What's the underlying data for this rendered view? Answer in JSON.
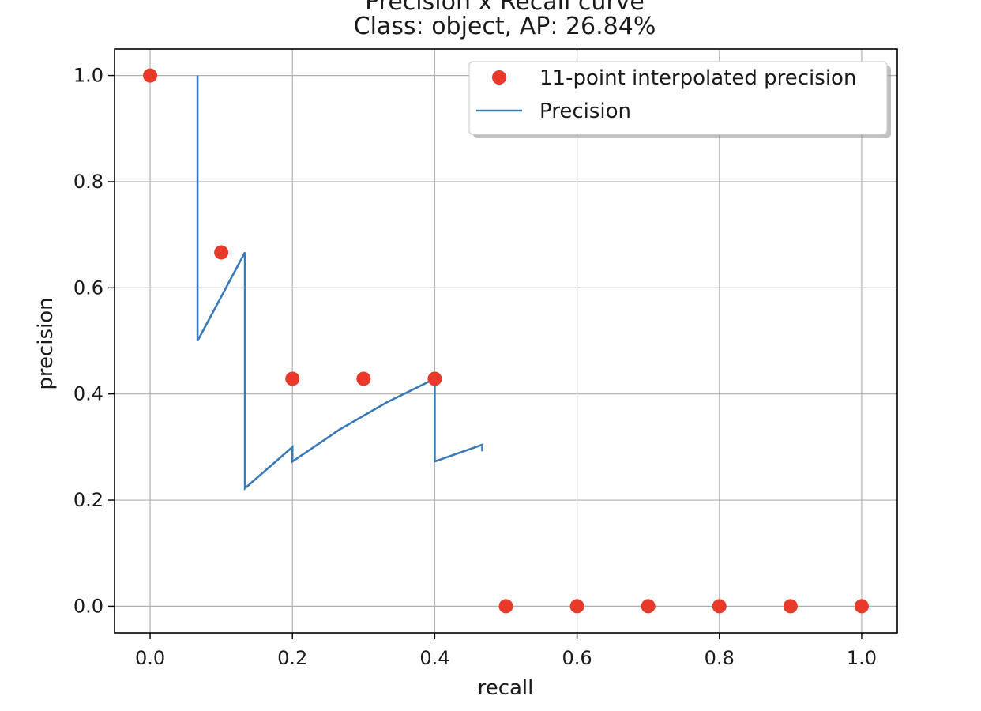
{
  "chart_data": {
    "type": "line",
    "title": [
      "Precision x Recall curve",
      "Class: object, AP: 26.84%"
    ],
    "xlabel": "recall",
    "ylabel": "precision",
    "xlim": [
      -0.05,
      1.05
    ],
    "ylim": [
      -0.05,
      1.05
    ],
    "xticks": [
      0.0,
      0.2,
      0.4,
      0.6,
      0.8,
      1.0
    ],
    "xtick_labels": [
      "0.0",
      "0.2",
      "0.4",
      "0.6",
      "0.8",
      "1.0"
    ],
    "yticks": [
      0.0,
      0.2,
      0.4,
      0.6,
      0.8,
      1.0
    ],
    "ytick_labels": [
      "0.0",
      "0.2",
      "0.4",
      "0.6",
      "0.8",
      "1.0"
    ],
    "grid": true,
    "legend_position": "top-right",
    "series": [
      {
        "name": "11-point interpolated precision",
        "kind": "scatter",
        "color": "#e8392a",
        "x": [
          0.0,
          0.1,
          0.2,
          0.3,
          0.4,
          0.5,
          0.6,
          0.7,
          0.8,
          0.9,
          1.0
        ],
        "y": [
          1.0,
          0.6667,
          0.4286,
          0.4286,
          0.4286,
          0.0,
          0.0,
          0.0,
          0.0,
          0.0,
          0.0
        ]
      },
      {
        "name": "Precision",
        "kind": "line",
        "color": "#3a7ab8",
        "x": [
          0.0667,
          0.0667,
          0.0667,
          0.1333,
          0.1333,
          0.1333,
          0.2,
          0.2,
          0.2667,
          0.3333,
          0.4,
          0.4,
          0.4,
          0.4667,
          0.4667
        ],
        "y": [
          1.0,
          0.6667,
          0.5,
          0.6667,
          0.5,
          0.2222,
          0.3,
          0.2727,
          0.3333,
          0.3846,
          0.4286,
          0.4,
          0.2727,
          0.3043,
          0.2917
        ]
      }
    ]
  }
}
